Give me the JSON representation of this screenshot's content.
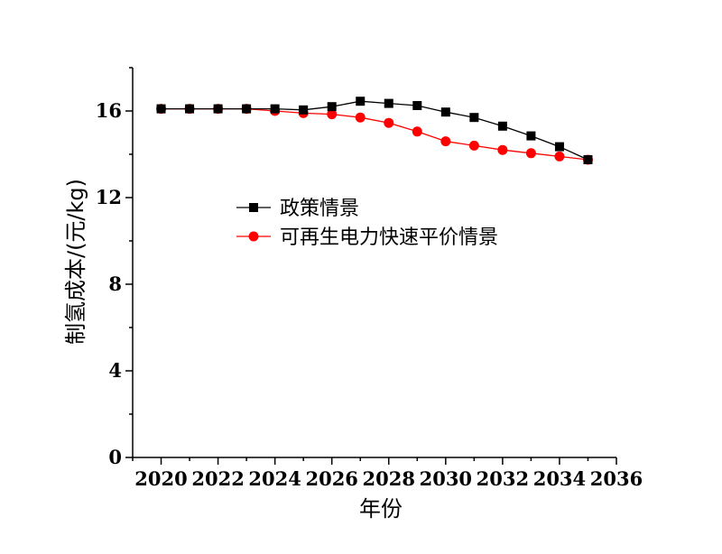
{
  "chart_data": {
    "type": "line",
    "title": "",
    "xlabel": "年份",
    "ylabel": "制氢成本/(元/kg)",
    "xlim": [
      2019,
      2036
    ],
    "ylim": [
      0,
      18
    ],
    "xticks": [
      2020,
      2022,
      2024,
      2026,
      2028,
      2030,
      2032,
      2034,
      2036
    ],
    "yticks": [
      0,
      4,
      8,
      12,
      16
    ],
    "grid": false,
    "legend_position": "center",
    "x": [
      2020,
      2021,
      2022,
      2023,
      2024,
      2025,
      2026,
      2027,
      2028,
      2029,
      2030,
      2031,
      2032,
      2033,
      2034,
      2035
    ],
    "series": [
      {
        "name": "政策情景",
        "color": "#000000",
        "marker": "square",
        "values": [
          16.1,
          16.1,
          16.1,
          16.1,
          16.1,
          16.05,
          16.2,
          16.45,
          16.35,
          16.25,
          15.95,
          15.7,
          15.3,
          14.85,
          14.35,
          13.75
        ]
      },
      {
        "name": "可再生电力快速平价情景",
        "color": "#ff0000",
        "marker": "circle",
        "values": [
          16.1,
          16.1,
          16.1,
          16.1,
          16.0,
          15.9,
          15.85,
          15.7,
          15.45,
          15.05,
          14.6,
          14.4,
          14.2,
          14.05,
          13.9,
          13.75
        ]
      }
    ]
  }
}
